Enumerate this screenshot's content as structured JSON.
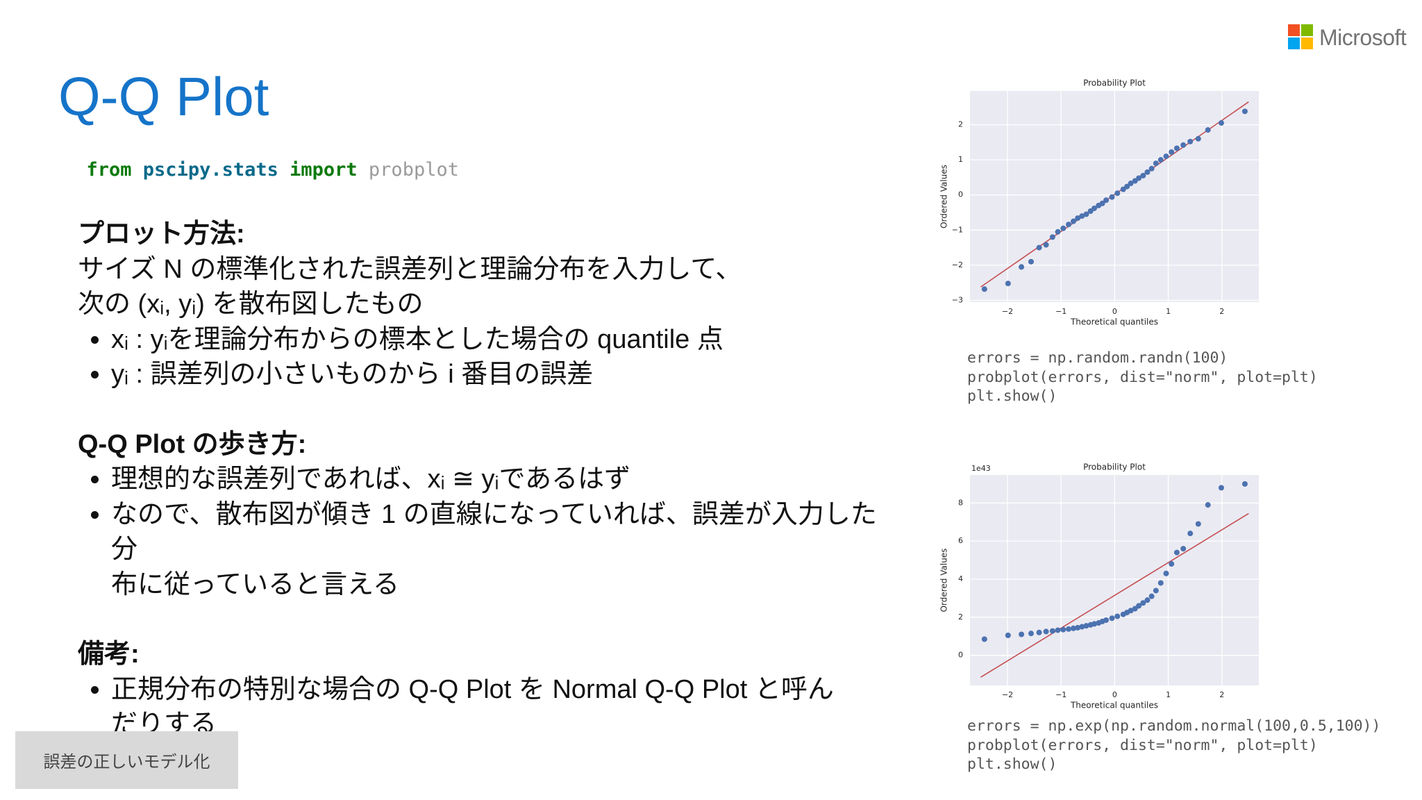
{
  "brand": "Microsoft",
  "title": "Q-Q Plot",
  "code_line": [
    "from",
    "pscipy.stats",
    "import",
    "probplot"
  ],
  "sections": [
    {
      "heading": "プロット方法:",
      "lines": [
        "サイズ N の標準化された誤差列と理論分布を入力して、",
        "次の (xᵢ, yᵢ) を散布図したもの"
      ],
      "bullets": [
        [
          "xᵢ : yᵢを理論分布からの標本とした場合の quantile 点"
        ],
        [
          "yᵢ : 誤差列の小さいものから i 番目の誤差"
        ]
      ]
    },
    {
      "heading": "Q-Q Plot の歩き方:",
      "bullets": [
        [
          "理想的な誤差列であれば、xᵢ ≅ yᵢであるはず"
        ],
        [
          "なので、散布図が傾き 1 の直線になっていれば、誤差が入力した分",
          "布に従っていると言える"
        ]
      ]
    },
    {
      "heading": "備考:",
      "bullets": [
        [
          "正規分布の特別な場合の Q-Q Plot を Normal Q-Q Plot と呼ん",
          "だりする"
        ]
      ]
    }
  ],
  "code_samples": [
    [
      "errors = np.random.randn(100)",
      "probplot(errors, dist=\"norm\", plot=plt)",
      "plt.show()"
    ],
    [
      "errors = np.exp(np.random.normal(100,0.5,100))",
      "probplot(errors, dist=\"norm\", plot=plt)",
      "plt.show()"
    ]
  ],
  "nav_button": "誤差の正しいモデル化",
  "chart_data": [
    {
      "type": "scatter",
      "title": "Probability Plot",
      "x_label": "Theoretical quantiles",
      "y_label": "Ordered Values",
      "x": [
        -2.43,
        -1.99,
        -1.74,
        -1.56,
        -1.41,
        -1.28,
        -1.16,
        -1.06,
        -0.96,
        -0.86,
        -0.77,
        -0.69,
        -0.61,
        -0.53,
        -0.45,
        -0.38,
        -0.3,
        -0.23,
        -0.16,
        -0.05,
        0.05,
        0.16,
        0.23,
        0.3,
        0.38,
        0.45,
        0.53,
        0.61,
        0.69,
        0.77,
        0.86,
        0.96,
        1.06,
        1.16,
        1.28,
        1.41,
        1.56,
        1.74,
        1.99,
        2.43
      ],
      "values": [
        -2.68,
        -2.52,
        -2.05,
        -1.9,
        -1.5,
        -1.42,
        -1.2,
        -1.05,
        -0.95,
        -0.84,
        -0.75,
        -0.66,
        -0.6,
        -0.55,
        -0.46,
        -0.38,
        -0.3,
        -0.24,
        -0.15,
        -0.06,
        0.05,
        0.16,
        0.24,
        0.33,
        0.4,
        0.48,
        0.55,
        0.65,
        0.75,
        0.9,
        1.0,
        1.1,
        1.22,
        1.33,
        1.42,
        1.52,
        1.6,
        1.85,
        2.05,
        2.38
      ],
      "color": "#4c72b0",
      "fit_line": {
        "x": [
          -2.5,
          2.5
        ],
        "values": [
          -2.62,
          2.65
        ],
        "color": "#c44e52"
      },
      "xlim": [
        -2.7,
        2.69
      ],
      "ylim": [
        -3.05,
        2.96
      ],
      "xticks": [
        {
          "value": -2,
          "label": "−2"
        },
        {
          "value": -1,
          "label": "−1"
        },
        0,
        1,
        2
      ],
      "yticks": [
        {
          "value": -3,
          "label": "−3"
        },
        {
          "value": -2,
          "label": "−2"
        },
        {
          "value": -1,
          "label": "−1"
        },
        0,
        1,
        2
      ],
      "grid": true
    },
    {
      "type": "scatter",
      "title": "Probability Plot",
      "x_label": "Theoretical quantiles",
      "y_label": "Ordered Values",
      "offset_label": "1e43",
      "x": [
        -2.43,
        -1.99,
        -1.74,
        -1.56,
        -1.41,
        -1.28,
        -1.16,
        -1.06,
        -0.96,
        -0.86,
        -0.77,
        -0.69,
        -0.61,
        -0.53,
        -0.45,
        -0.38,
        -0.3,
        -0.23,
        -0.16,
        -0.05,
        0.05,
        0.16,
        0.23,
        0.3,
        0.38,
        0.45,
        0.53,
        0.61,
        0.69,
        0.77,
        0.86,
        0.96,
        1.06,
        1.16,
        1.28,
        1.41,
        1.56,
        1.74,
        1.99,
        2.43
      ],
      "values": [
        0.85,
        1.05,
        1.1,
        1.15,
        1.2,
        1.25,
        1.28,
        1.32,
        1.35,
        1.38,
        1.42,
        1.45,
        1.5,
        1.55,
        1.6,
        1.65,
        1.7,
        1.78,
        1.85,
        1.95,
        2.05,
        2.15,
        2.25,
        2.35,
        2.45,
        2.6,
        2.75,
        2.9,
        3.1,
        3.4,
        3.8,
        4.3,
        4.8,
        5.4,
        5.6,
        6.4,
        6.9,
        7.9,
        8.8,
        9.0
      ],
      "color": "#4c72b0",
      "fit_line": {
        "x": [
          -2.5,
          2.5
        ],
        "values": [
          -1.15,
          7.45
        ],
        "color": "#c44e52"
      },
      "xlim": [
        -2.7,
        2.69
      ],
      "ylim": [
        -1.58,
        9.47
      ],
      "xticks": [
        {
          "value": -2,
          "label": "−2"
        },
        {
          "value": -1,
          "label": "−1"
        },
        0,
        1,
        2
      ],
      "yticks": [
        0,
        2,
        4,
        6,
        8
      ],
      "grid": true
    }
  ]
}
